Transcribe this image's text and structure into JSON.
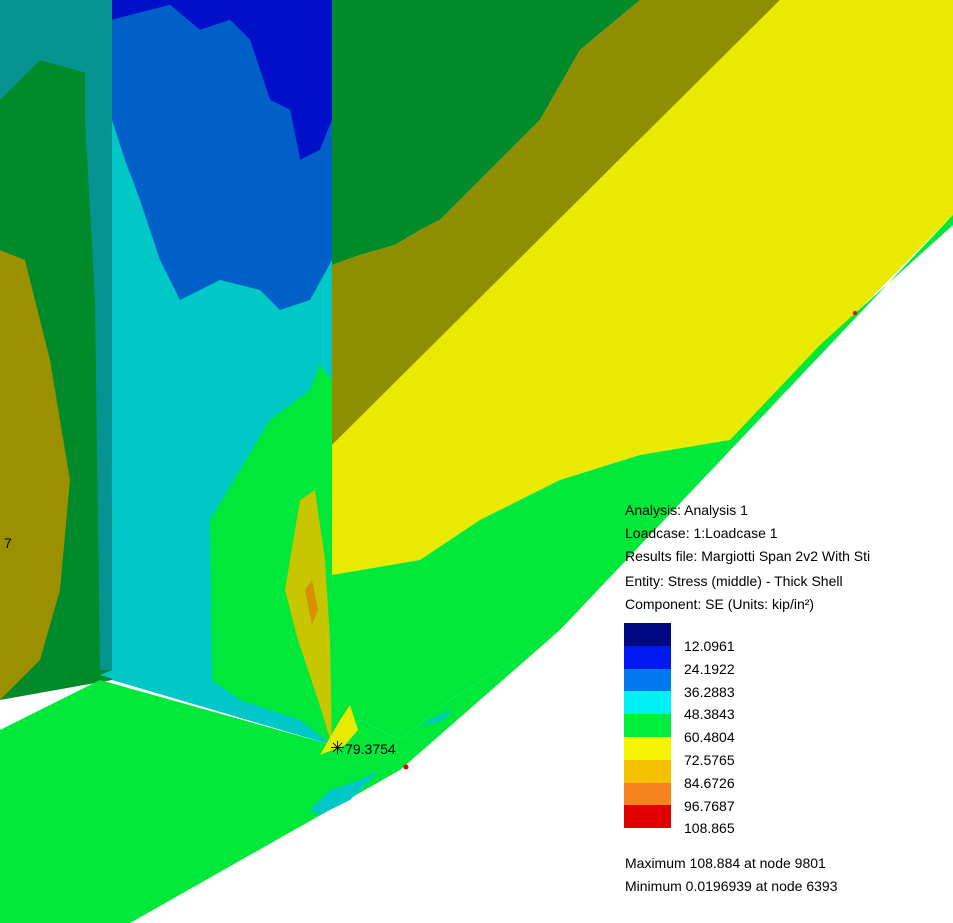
{
  "info": {
    "analysis": "Analysis: Analysis 1",
    "loadcase": "Loadcase: 1:Loadcase 1",
    "results_file": "Results file: Margiotti Span 2v2 With Sti",
    "entity": "Entity: Stress (middle) - Thick Shell",
    "component": "Component: SE (Units: kip/in²)"
  },
  "legend": {
    "colors": [
      "#000a80",
      "#0019f0",
      "#0078ee",
      "#00f0f5",
      "#00ee3c",
      "#f5f500",
      "#f5c000",
      "#f5841e",
      "#e00000"
    ],
    "values": [
      "12.0961",
      "24.1922",
      "36.2883",
      "48.3843",
      "60.4804",
      "72.5765",
      "84.6726",
      "96.7687",
      "108.865"
    ]
  },
  "summary": {
    "maximum": "Maximum 108.884 at node 9801",
    "minimum": "Minimum 0.0196939 at node 6393"
  },
  "probe": {
    "marker": "✳",
    "value": "79.3754"
  },
  "edge_label": "7",
  "colors": {
    "teal": "#069493",
    "dark_blue": "#0010c8",
    "mid_blue": "#0060c8",
    "cyan": "#00c8c6",
    "dark_green": "#008a2a",
    "olive": "#9a9000",
    "olive_dark": "#8e8e00",
    "yellow": "#e8ea00",
    "green": "#00e83a",
    "yellow_green": "#c8c600",
    "orange": "#d89000"
  }
}
